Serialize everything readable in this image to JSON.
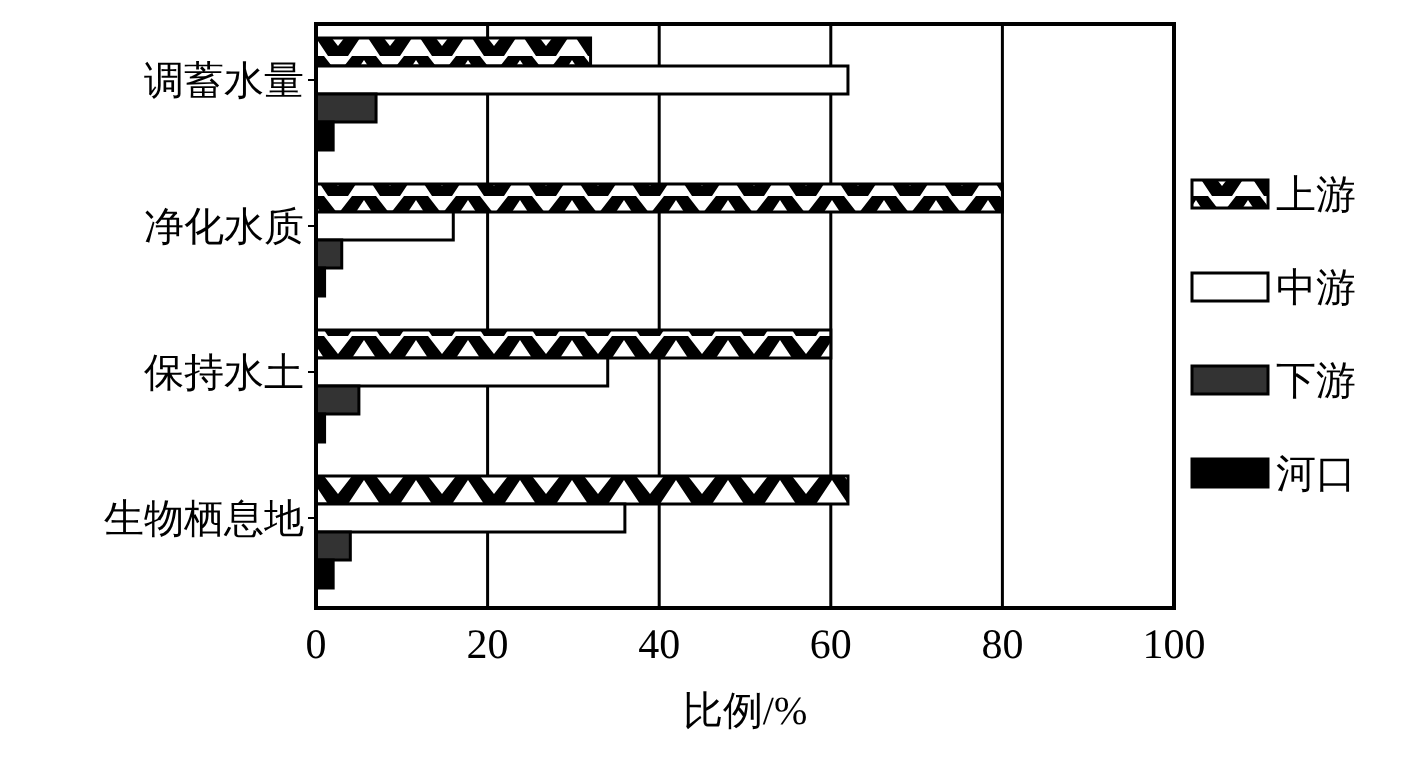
{
  "chart_data": {
    "type": "bar",
    "orientation": "horizontal",
    "xlabel": "比例/%",
    "categories": [
      "调蓄水量",
      "净化水质",
      "保持水土",
      "生物栖息地"
    ],
    "series": [
      {
        "name": "上游",
        "color": "#000000",
        "values": [
          32,
          80,
          60,
          62
        ]
      },
      {
        "name": "中游",
        "color": "#ffffff",
        "values": [
          62,
          16,
          34,
          36
        ]
      },
      {
        "name": "下游",
        "color": "#333333",
        "values": [
          7,
          3,
          5,
          4
        ]
      },
      {
        "name": "河口",
        "color": "#000000",
        "values": [
          2,
          1,
          1,
          2
        ]
      }
    ],
    "xlim": [
      0,
      100
    ],
    "xticks": [
      0,
      20,
      40,
      60,
      80,
      100
    ],
    "grid": "x",
    "legend": "right"
  }
}
